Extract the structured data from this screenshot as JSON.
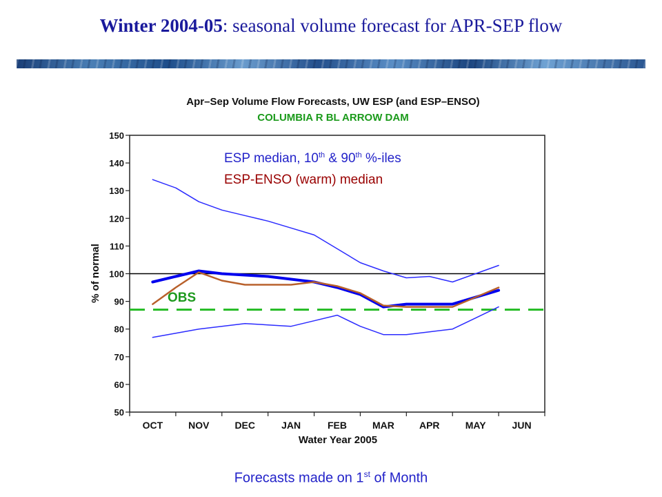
{
  "slide": {
    "title_bold": "Winter 2004-05",
    "title_rest": ":  seasonal  volume  forecast  for  APR-SEP flow",
    "footer_pre": "Forecasts made on 1",
    "footer_sup": "st",
    "footer_post": " of Month"
  },
  "colors": {
    "esp": "#2b2bff",
    "esp_median": "#0000ee",
    "enso": "#b8602b",
    "obs": "#22bb22",
    "obs_label": "#1e9a1e",
    "title": "#1a1a9c",
    "chart_subtitle": "#1a9a1a",
    "legend_enso": "#990000",
    "reference": "#000000"
  },
  "chart_data": {
    "type": "line",
    "title": "Apr–Sep Volume Flow Forecasts, UW ESP (and ESP–ENSO)",
    "subtitle": "COLUMBIA R BL ARROW DAM",
    "xlabel": "Water Year 2005",
    "ylabel": "% of normal",
    "categories": [
      "OCT",
      "NOV",
      "DEC",
      "JAN",
      "FEB",
      "MAR",
      "APR",
      "MAY",
      "JUN"
    ],
    "ylim": [
      50,
      150
    ],
    "yticks": [
      50,
      60,
      70,
      80,
      90,
      100,
      110,
      120,
      130,
      140,
      150
    ],
    "legend": [
      {
        "pre": "ESP median, 10",
        "sup1": "th",
        "mid": " & 90",
        "sup2": "th",
        "post": "  %-iles"
      },
      {
        "text": "ESP-ENSO (warm) median"
      }
    ],
    "obs_label": "OBS",
    "obs_value": 87,
    "reference_value": 100,
    "series": [
      {
        "role": "esp_p90",
        "x": [
          0,
          0.5,
          1,
          1.5,
          2,
          2.5,
          3,
          3.5,
          4,
          4.5,
          5,
          5.5,
          6,
          6.5,
          7,
          7.5
        ],
        "values": [
          134,
          131,
          126,
          123,
          121,
          119,
          116.5,
          114,
          109,
          104,
          101,
          98.5,
          99,
          97,
          100,
          103
        ]
      },
      {
        "role": "esp_median",
        "x": [
          0,
          0.5,
          1,
          1.5,
          2,
          2.5,
          3,
          3.5,
          4,
          4.5,
          5,
          5.5,
          6,
          6.5,
          7,
          7.5
        ],
        "values": [
          97,
          99,
          101,
          100,
          99.5,
          99,
          98,
          97,
          95,
          92.5,
          88,
          89,
          89,
          89,
          91.5,
          94
        ]
      },
      {
        "role": "esp_p10",
        "x": [
          0,
          0.5,
          1,
          1.5,
          2,
          2.5,
          3,
          3.5,
          4,
          4.5,
          5,
          5.5,
          6,
          6.5,
          7,
          7.5
        ],
        "values": [
          77,
          78.5,
          80,
          81,
          82,
          81.5,
          81,
          83,
          85,
          81,
          78,
          78,
          79,
          80,
          84,
          88
        ]
      },
      {
        "role": "enso_median",
        "x": [
          0,
          0.5,
          1,
          1.5,
          2,
          2.5,
          3,
          3.5,
          4,
          4.5,
          5,
          5.5,
          6,
          6.5,
          7,
          7.5
        ],
        "values": [
          89,
          95,
          100.5,
          97.5,
          96,
          96,
          96,
          97,
          95.5,
          93,
          88.5,
          88,
          88,
          88,
          91.5,
          95
        ]
      }
    ]
  }
}
